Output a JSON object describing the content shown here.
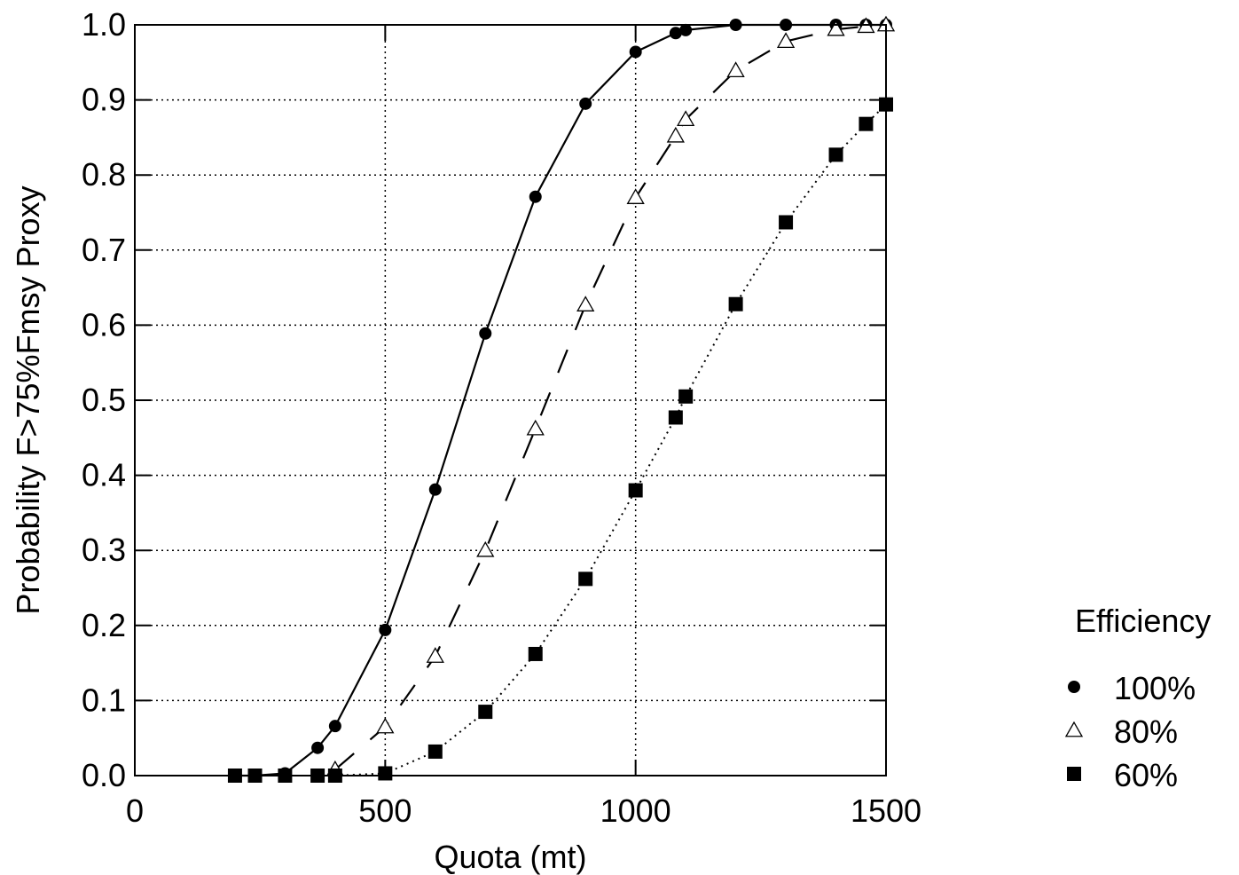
{
  "chart_data": {
    "type": "line",
    "xlabel": "Quota (mt)",
    "ylabel": "Probability F>75%Fmsy Proxy",
    "xlim": [
      0,
      1500
    ],
    "ylim": [
      0,
      1.0
    ],
    "xticks": [
      0,
      500,
      1000,
      1500
    ],
    "yticks": [
      0.0,
      0.1,
      0.2,
      0.3,
      0.4,
      0.5,
      0.6,
      0.7,
      0.8,
      0.9,
      1.0
    ],
    "grid": "dotted, at x=500 and x=1000 and every 0.1 in y",
    "legend": {
      "title": "Efficiency",
      "position": "right"
    },
    "series": [
      {
        "name": "100%",
        "marker": "circle",
        "line": "solid",
        "x": [
          200,
          240,
          300,
          365,
          400,
          500,
          600,
          700,
          800,
          900,
          1000,
          1080,
          1100,
          1200,
          1300,
          1400,
          1460,
          1500
        ],
        "y": [
          0.0,
          0.0,
          0.003,
          0.037,
          0.066,
          0.194,
          0.381,
          0.589,
          0.771,
          0.895,
          0.964,
          0.989,
          0.993,
          1.0,
          1.0,
          1.0,
          1.0,
          1.0
        ]
      },
      {
        "name": "80%",
        "marker": "triangle",
        "line": "dashed",
        "x": [
          400,
          500,
          600,
          700,
          800,
          900,
          1000,
          1080,
          1100,
          1200,
          1300,
          1400,
          1460,
          1500
        ],
        "y": [
          0.008,
          0.065,
          0.159,
          0.3,
          0.462,
          0.627,
          0.77,
          0.852,
          0.874,
          0.939,
          0.978,
          0.994,
          0.998,
          1.0
        ]
      },
      {
        "name": "60%",
        "marker": "square",
        "line": "dotted",
        "x": [
          200,
          240,
          300,
          365,
          400,
          500,
          600,
          700,
          800,
          900,
          1000,
          1080,
          1100,
          1200,
          1300,
          1400,
          1460,
          1500
        ],
        "y": [
          0.0,
          0.0,
          0.0,
          0.0,
          0.0,
          0.003,
          0.032,
          0.085,
          0.162,
          0.262,
          0.38,
          0.477,
          0.505,
          0.628,
          0.737,
          0.827,
          0.868,
          0.894
        ]
      }
    ]
  }
}
